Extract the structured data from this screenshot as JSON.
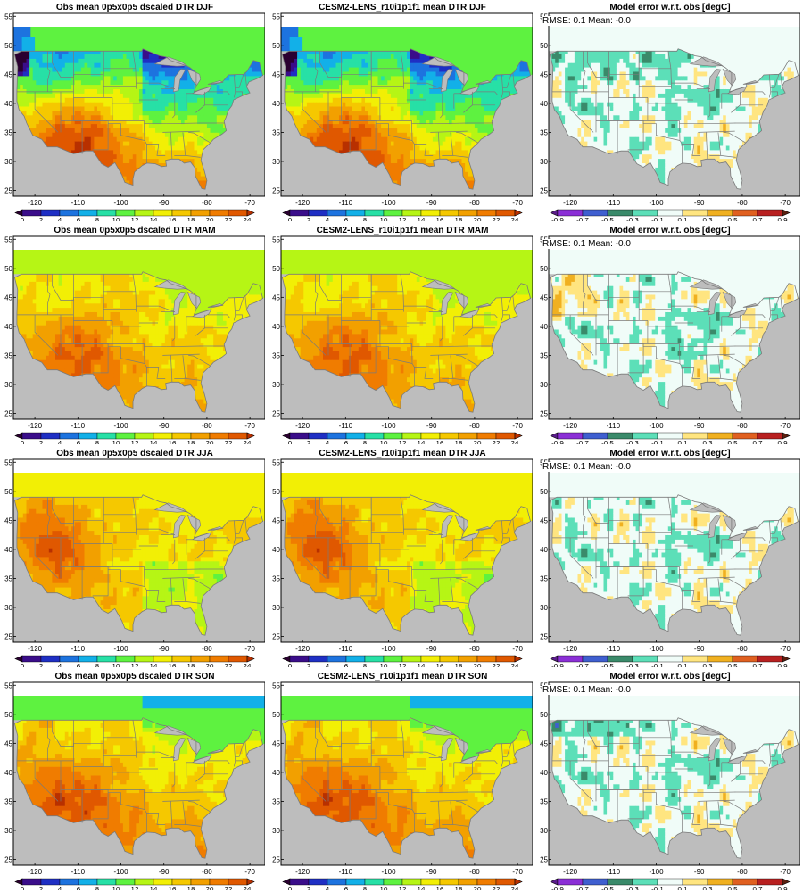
{
  "figure": {
    "rows": [
      {
        "season": "DJF",
        "panels": [
          {
            "kind": "obs",
            "title": "Obs mean 0p5x0p5 dscaled DTR DJF"
          },
          {
            "kind": "model",
            "title": "CESM2-LENS_r10i1p1f1 mean DTR DJF"
          },
          {
            "kind": "error",
            "title": "Model error w.r.t. obs [degC]",
            "stats": "RMSE:  0.1   Mean:  -0.0"
          }
        ]
      },
      {
        "season": "MAM",
        "panels": [
          {
            "kind": "obs",
            "title": "Obs mean 0p5x0p5 dscaled DTR MAM"
          },
          {
            "kind": "model",
            "title": "CESM2-LENS_r10i1p1f1 mean DTR MAM"
          },
          {
            "kind": "error",
            "title": "Model error w.r.t. obs [degC]",
            "stats": "RMSE:  0.1   Mean:  -0.0"
          }
        ]
      },
      {
        "season": "JJA",
        "panels": [
          {
            "kind": "obs",
            "title": "Obs mean 0p5x0p5 dscaled DTR JJA"
          },
          {
            "kind": "model",
            "title": "CESM2-LENS_r10i1p1f1 mean DTR JJA"
          },
          {
            "kind": "error",
            "title": "Model error w.r.t. obs [degC]",
            "stats": "RMSE:  0.1   Mean:  -0.0"
          }
        ]
      },
      {
        "season": "SON",
        "panels": [
          {
            "kind": "obs",
            "title": "Obs mean 0p5x0p5 dscaled DTR SON"
          },
          {
            "kind": "model",
            "title": "CESM2-LENS_r10i1p1f1 mean DTR SON"
          },
          {
            "kind": "error",
            "title": "Model error w.r.t. obs [degC]",
            "stats": "RMSE:  0.1   Mean:  -0.0"
          }
        ]
      }
    ],
    "lon_ticks": [
      "-120",
      "-110",
      "-100",
      "-90",
      "-80",
      "-70"
    ],
    "lon_values": [
      -120,
      -110,
      -100,
      -90,
      -80,
      -70
    ],
    "lat_ticks": [
      "25",
      "30",
      "35",
      "40",
      "45",
      "50",
      "55"
    ],
    "lat_values": [
      25,
      30,
      35,
      40,
      45,
      50,
      55
    ],
    "lon_range": [
      -125,
      -66.5
    ],
    "lat_range": [
      24,
      55.5
    ],
    "dtr_colorbar": {
      "labels": [
        "0",
        "2",
        "4",
        "6",
        "8",
        "10",
        "12",
        "14",
        "16",
        "18",
        "20",
        "22",
        "24"
      ],
      "colors": [
        "#2a0030",
        "#3a0d8a",
        "#1f2fc4",
        "#1d73df",
        "#12b0e8",
        "#27e0a6",
        "#5ef240",
        "#b6f515",
        "#f2ef05",
        "#f5c800",
        "#f2a000",
        "#f07c00",
        "#e05800",
        "#b83000"
      ]
    },
    "error_colorbar": {
      "labels": [
        "-0.9",
        "-0.7",
        "-0.5",
        "-0.3",
        "-0.1",
        "0.1",
        "0.3",
        "0.5",
        "0.7",
        "0.9"
      ],
      "colors": [
        "#5a1d8a",
        "#8b2fd6",
        "#3f5fd0",
        "#3a8a6a",
        "#5cdfb8",
        "#f0fcf8",
        "#ffe580",
        "#f0b020",
        "#e06020",
        "#b82020",
        "#5a2010"
      ]
    },
    "land_mask_color": "#bdbdbd"
  }
}
